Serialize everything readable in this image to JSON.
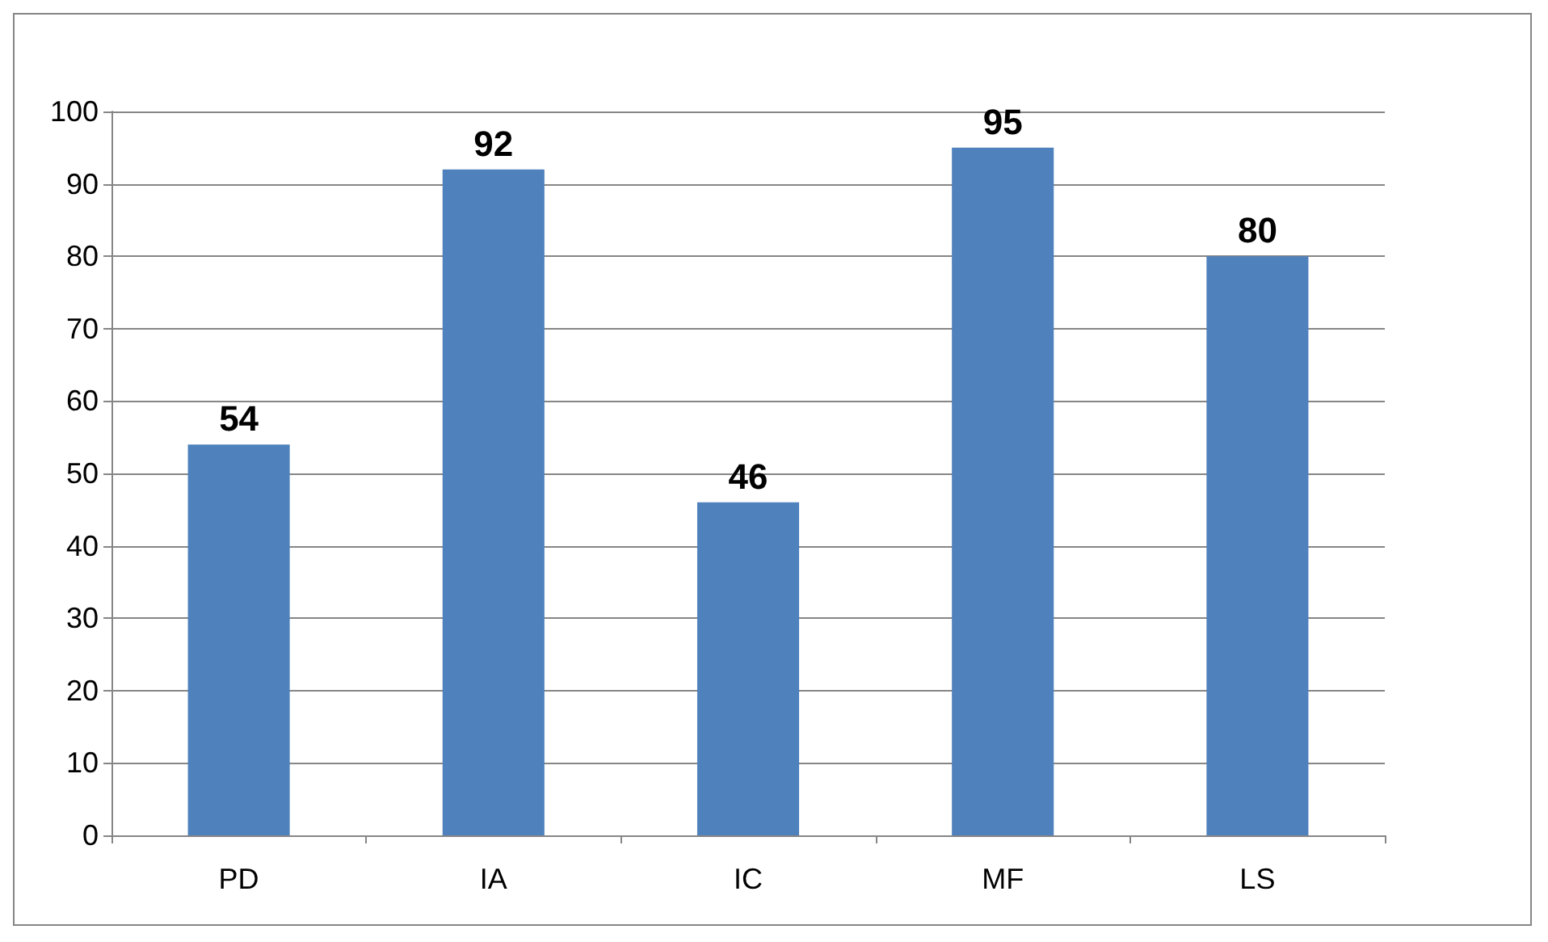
{
  "chart_data": {
    "type": "bar",
    "categories": [
      "PD",
      "IA",
      "IC",
      "MF",
      "LS"
    ],
    "values": [
      54,
      92,
      46,
      95,
      80
    ],
    "color": "#4f81bd",
    "ylim": [
      0,
      100
    ],
    "yticks": [
      0,
      10,
      20,
      30,
      40,
      50,
      60,
      70,
      80,
      90,
      100
    ],
    "grid": "y",
    "data_labels": true
  }
}
